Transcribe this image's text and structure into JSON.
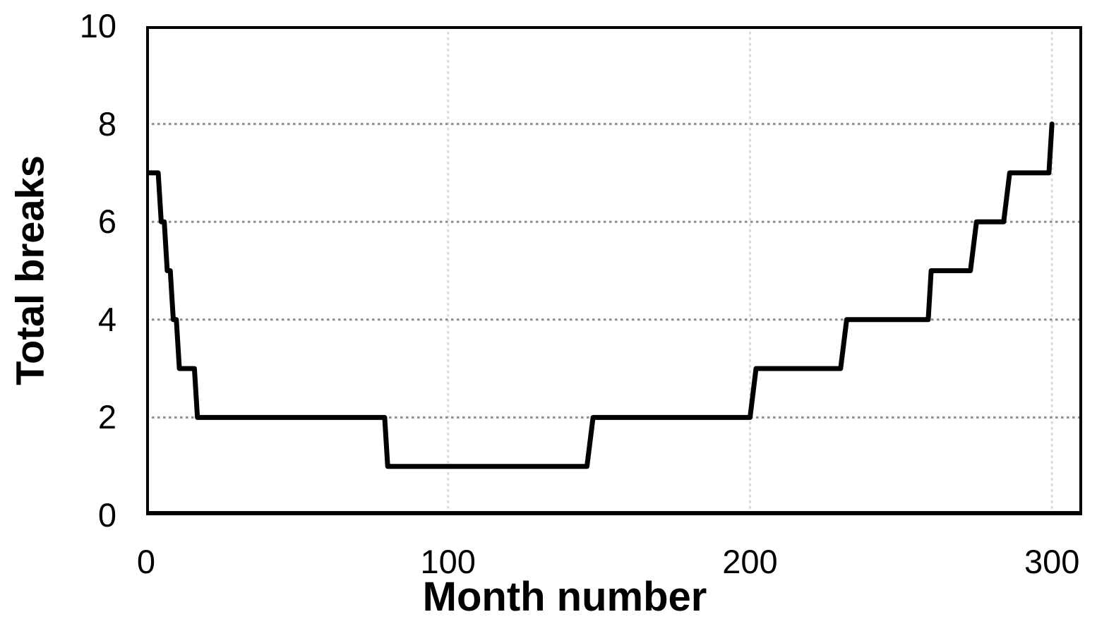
{
  "chart_data": {
    "type": "line",
    "subtype": "step",
    "title": "",
    "xlabel": "Month number",
    "ylabel": "Total breaks",
    "xlim": [
      0,
      310
    ],
    "ylim": [
      0,
      10
    ],
    "x_ticks": [
      0,
      100,
      200,
      300
    ],
    "y_ticks": [
      0,
      2,
      4,
      6,
      8,
      10
    ],
    "grid": "dotted",
    "legend": "none",
    "series": [
      {
        "name": "Total breaks",
        "points": [
          [
            0,
            7
          ],
          [
            4,
            7
          ],
          [
            5,
            6
          ],
          [
            6,
            6
          ],
          [
            7,
            5
          ],
          [
            8,
            5
          ],
          [
            9,
            4
          ],
          [
            10,
            4
          ],
          [
            11,
            3
          ],
          [
            16,
            3
          ],
          [
            17,
            2
          ],
          [
            79,
            2
          ],
          [
            80,
            1
          ],
          [
            146,
            1
          ],
          [
            148,
            2
          ],
          [
            200,
            2
          ],
          [
            202,
            3
          ],
          [
            230,
            3
          ],
          [
            232,
            4
          ],
          [
            259,
            4
          ],
          [
            260,
            5
          ],
          [
            273,
            5
          ],
          [
            275,
            6
          ],
          [
            284,
            6
          ],
          [
            286,
            7
          ],
          [
            299,
            7
          ],
          [
            300,
            8
          ]
        ]
      }
    ],
    "colors": {
      "line": "#000000",
      "plot_border": "#000000",
      "h_gridline": "#8c8c8c",
      "v_gridline": "#d9d9d9",
      "background": "#ffffff",
      "text": "#000000"
    }
  }
}
